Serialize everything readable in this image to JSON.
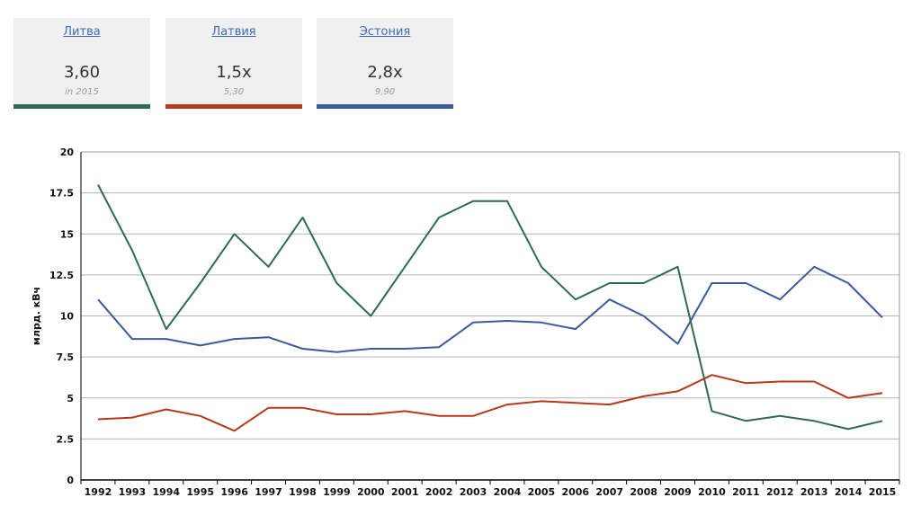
{
  "cards": [
    {
      "name": "Литва",
      "value": "3,60",
      "sub": "in 2015",
      "color": "#2e6b4f"
    },
    {
      "name": "Латвия",
      "value": "1,5x",
      "sub": "5,30",
      "color": "#b5391a"
    },
    {
      "name": "Эстония",
      "value": "2,8x",
      "sub": "9,90",
      "color": "#3a5a9c"
    }
  ],
  "chart_data": {
    "type": "line",
    "title": "",
    "xlabel": "",
    "ylabel": "млрд. кВч",
    "ylim": [
      0,
      20
    ],
    "yticks": [
      0,
      2.5,
      5,
      7.5,
      10,
      12.5,
      15,
      17.5,
      20
    ],
    "ytick_labels": [
      "0",
      "2.5",
      "5",
      "7.5",
      "10",
      "12.5",
      "15",
      "17.5",
      "20"
    ],
    "grid": true,
    "x": [
      1992,
      1993,
      1994,
      1995,
      1996,
      1997,
      1998,
      1999,
      2000,
      2001,
      2002,
      2003,
      2004,
      2005,
      2006,
      2007,
      2008,
      2009,
      2010,
      2011,
      2012,
      2013,
      2014,
      2015
    ],
    "series": [
      {
        "color": "#2e6b4f",
        "values": [
          18,
          14,
          9.2,
          12,
          15,
          13,
          16,
          12,
          10,
          13,
          16,
          17,
          17,
          13,
          11,
          12,
          12,
          13,
          4.2,
          3.6,
          3.9,
          3.6,
          3.1,
          3.6
        ]
      },
      {
        "color": "#3a5a9c",
        "values": [
          11,
          8.6,
          8.6,
          8.2,
          8.6,
          8.7,
          8.0,
          7.8,
          8.0,
          8.0,
          8.1,
          9.6,
          9.7,
          9.6,
          9.2,
          11,
          10,
          8.3,
          12,
          12,
          11,
          13,
          12,
          9.9
        ]
      },
      {
        "color": "#b5391a",
        "values": [
          3.7,
          3.8,
          4.3,
          3.9,
          3.0,
          4.4,
          4.4,
          4.0,
          4.0,
          4.2,
          3.9,
          3.9,
          4.6,
          4.8,
          4.7,
          4.6,
          5.1,
          5.4,
          6.4,
          5.9,
          6.0,
          6.0,
          5.0,
          5.3
        ]
      }
    ]
  }
}
